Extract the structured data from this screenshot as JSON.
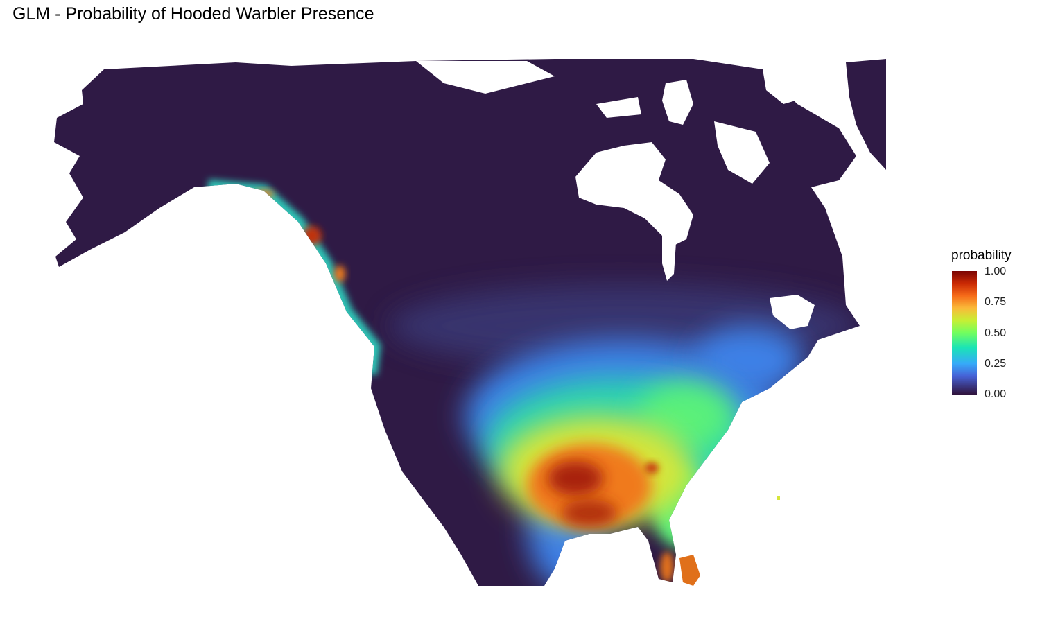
{
  "title": "GLM - Probability of Hooded Warbler Presence",
  "legend": {
    "title": "probability",
    "ticks": [
      "1.00",
      "0.75",
      "0.50",
      "0.25",
      "0.00"
    ],
    "tick_values": [
      1.0,
      0.75,
      0.5,
      0.25,
      0.0
    ]
  },
  "colors": {
    "background": "#ffffff",
    "low": "#30123b",
    "mid": "#72fe5e",
    "high": "#7a0403",
    "land_base": "#2f1a45"
  }
}
